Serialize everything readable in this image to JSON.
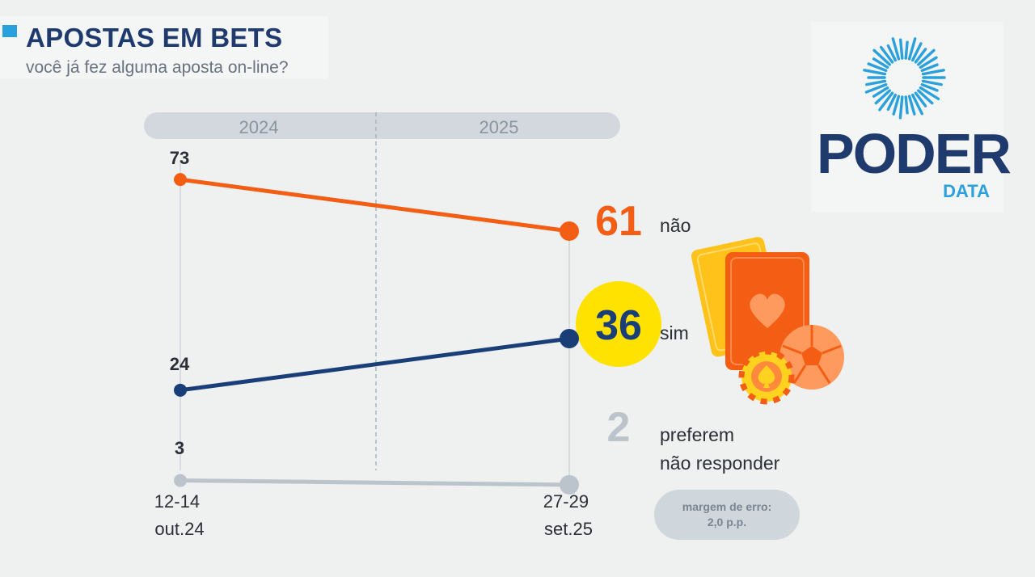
{
  "header": {
    "title": "APOSTAS EM BETS",
    "subtitle": "você já fez alguma aposta on-line?"
  },
  "logo": {
    "word": "PODER",
    "sub": "DATA"
  },
  "colors": {
    "nao": "#f45d14",
    "sim": "#1a3f78",
    "prefer": "#bcc4cb",
    "highlight": "#ffe200",
    "title": "#1f3a6d",
    "accent": "#2aa0dc"
  },
  "chart_data": {
    "type": "line",
    "periods": [
      "2024",
      "2025"
    ],
    "x": [
      "12-14 out.24",
      "27-29 set.25"
    ],
    "x_lines": [
      [
        "12-14",
        "out.24"
      ],
      [
        "27-29",
        "set.25"
      ]
    ],
    "series": [
      {
        "name": "não",
        "values": [
          73,
          61
        ]
      },
      {
        "name": "sim",
        "values": [
          24,
          36
        ]
      },
      {
        "name": "preferem não responder",
        "values": [
          3,
          2
        ]
      }
    ],
    "ylim": [
      0,
      80
    ],
    "note": [
      "margem de erro:",
      "2,0 p.p."
    ]
  }
}
